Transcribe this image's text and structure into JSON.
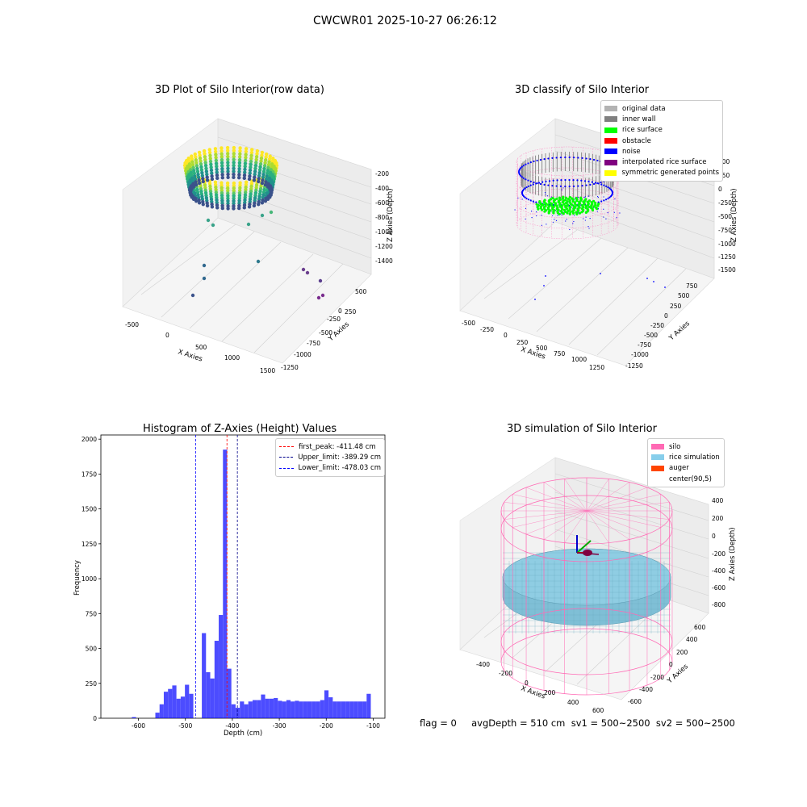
{
  "suptitle": "CWCWR01 2025-10-27 06:26:12",
  "footer": "flag = 0     avgDepth = 510 cm  sv1 = 500~2500  sv2 = 500~2500",
  "panels": {
    "raw": {
      "title": "3D Plot of Silo Interior(row data)",
      "xlabel": "X Axies",
      "ylabel": "Y Axies",
      "zlabel": "Z Axies (Depth)",
      "xticks": [
        "-500",
        "0",
        "500",
        "1000",
        "1500"
      ],
      "yticks": [
        "500",
        "250",
        "0",
        "-250",
        "-500",
        "-750",
        "-1000",
        "-1250"
      ],
      "zticks": [
        "-200",
        "-400",
        "-600",
        "-800",
        "-1000",
        "-1200",
        "-1400"
      ]
    },
    "classify": {
      "title": "3D classify of Silo Interior",
      "xlabel": "X Axies",
      "ylabel": "Y Axies",
      "zlabel": "Z Axies (Depth)",
      "xticks": [
        "-500",
        "-250",
        "0",
        "250",
        "500",
        "750",
        "1000",
        "1250"
      ],
      "yticks": [
        "750",
        "500",
        "250",
        "0",
        "-250",
        "-500",
        "-750",
        "-1000",
        "-1250"
      ],
      "zticks": [
        "500",
        "250",
        "0",
        "-250",
        "-500",
        "-750",
        "-1000",
        "-1250",
        "-1500"
      ],
      "legend": [
        {
          "label": "original data",
          "color": "#b3b3b3"
        },
        {
          "label": "inner wall",
          "color": "#808080"
        },
        {
          "label": "rice surface",
          "color": "#00ff00"
        },
        {
          "label": "obstacle",
          "color": "#ff0000"
        },
        {
          "label": "noise",
          "color": "#0000ff"
        },
        {
          "label": "interpolated rice surface",
          "color": "#800080"
        },
        {
          "label": "symmetric generated points",
          "color": "#ffff00"
        }
      ]
    },
    "histogram": {
      "title": "Histogram of Z-Axies (Height) Values",
      "xlabel": "Depth (cm)",
      "ylabel": "Frequency",
      "xticks": [
        "-600",
        "-500",
        "-400",
        "-300",
        "-200",
        "-100"
      ],
      "yticks": [
        "0",
        "250",
        "500",
        "750",
        "1000",
        "1250",
        "1500",
        "1750",
        "2000"
      ],
      "legend": [
        {
          "label": "first_peak: -411.48 cm",
          "color": "#ff0000"
        },
        {
          "label": "Upper_limit: -389.29 cm",
          "color": "#00008b"
        },
        {
          "label": "Lower_limit: -478.03 cm",
          "color": "#0000ff"
        }
      ]
    },
    "simulation": {
      "title": "3D simulation of Silo Interior",
      "xlabel": "X Axies",
      "ylabel": "Y Axies",
      "zlabel": "Z Axies (Depth)",
      "xticks": [
        "-400",
        "-200",
        "0",
        "200",
        "400",
        "600"
      ],
      "yticks": [
        "600",
        "400",
        "200",
        "0",
        "-200",
        "-400",
        "-600"
      ],
      "zticks": [
        "400",
        "200",
        "0",
        "-200",
        "-400",
        "-600",
        "-800"
      ],
      "legend": [
        {
          "label": "silo",
          "color": "#ff69b4"
        },
        {
          "label": "rice simulation",
          "color": "#87ceeb"
        },
        {
          "label": "auger",
          "color": "#ff4500"
        },
        {
          "label": "center(90,5)",
          "color": "#ffffff"
        }
      ]
    }
  },
  "chart_data": [
    {
      "type": "heatmap",
      "title": "3D Plot of Silo Interior(row data)",
      "xlabel": "X Axies",
      "ylabel": "Y Axies",
      "zlabel": "Z Axies (Depth)",
      "xlim": [
        -750,
        1500
      ],
      "ylim": [
        -1250,
        750
      ],
      "zlim": [
        -1500,
        -150
      ]
    },
    {
      "type": "scatter",
      "title": "3D classify of Silo Interior",
      "series": [
        {
          "name": "original data"
        },
        {
          "name": "inner wall"
        },
        {
          "name": "rice surface"
        },
        {
          "name": "obstacle"
        },
        {
          "name": "noise"
        },
        {
          "name": "interpolated rice surface"
        },
        {
          "name": "symmetric generated points"
        }
      ],
      "zlim": [
        -1500,
        500
      ]
    },
    {
      "type": "bar",
      "title": "Histogram of Z-Axies (Height) Values",
      "xlabel": "Depth (cm)",
      "ylabel": "Frequency",
      "xlim": [
        -680,
        -75
      ],
      "ylim": [
        0,
        2030
      ],
      "bin_width": 8.9,
      "bins": [
        [
          -614,
          8
        ],
        [
          -564,
          40
        ],
        [
          -555,
          100
        ],
        [
          -546,
          190
        ],
        [
          -537,
          210
        ],
        [
          -528,
          235
        ],
        [
          -519,
          140
        ],
        [
          -510,
          155
        ],
        [
          -501,
          240
        ],
        [
          -492,
          175
        ],
        [
          -483,
          0
        ],
        [
          -474,
          0
        ],
        [
          -465,
          610
        ],
        [
          -456,
          330
        ],
        [
          -447,
          285
        ],
        [
          -438,
          555
        ],
        [
          -429,
          740
        ],
        [
          -420,
          1925
        ],
        [
          -411,
          355
        ],
        [
          -402,
          100
        ],
        [
          -393,
          75
        ],
        [
          -384,
          120
        ],
        [
          -375,
          100
        ],
        [
          -366,
          120
        ],
        [
          -357,
          130
        ],
        [
          -348,
          130
        ],
        [
          -339,
          170
        ],
        [
          -330,
          140
        ],
        [
          -321,
          140
        ],
        [
          -312,
          145
        ],
        [
          -303,
          125
        ],
        [
          -294,
          120
        ],
        [
          -285,
          130
        ],
        [
          -276,
          120
        ],
        [
          -267,
          125
        ],
        [
          -258,
          120
        ],
        [
          -249,
          120
        ],
        [
          -240,
          120
        ],
        [
          -231,
          120
        ],
        [
          -222,
          120
        ],
        [
          -213,
          130
        ],
        [
          -204,
          200
        ],
        [
          -195,
          150
        ],
        [
          -186,
          120
        ],
        [
          -177,
          120
        ],
        [
          -168,
          120
        ],
        [
          -159,
          120
        ],
        [
          -150,
          120
        ],
        [
          -141,
          120
        ],
        [
          -132,
          120
        ],
        [
          -123,
          120
        ],
        [
          -114,
          175
        ]
      ],
      "vlines": [
        {
          "name": "first_peak",
          "x": -411.48
        },
        {
          "name": "Upper_limit",
          "x": -389.29
        },
        {
          "name": "Lower_limit",
          "x": -478.03
        }
      ]
    },
    {
      "type": "scatter",
      "title": "3D simulation of Silo Interior",
      "series": [
        {
          "name": "silo"
        },
        {
          "name": "rice simulation"
        },
        {
          "name": "auger"
        },
        {
          "name": "center(90,5)"
        }
      ],
      "zlim": [
        -900,
        450
      ]
    }
  ]
}
